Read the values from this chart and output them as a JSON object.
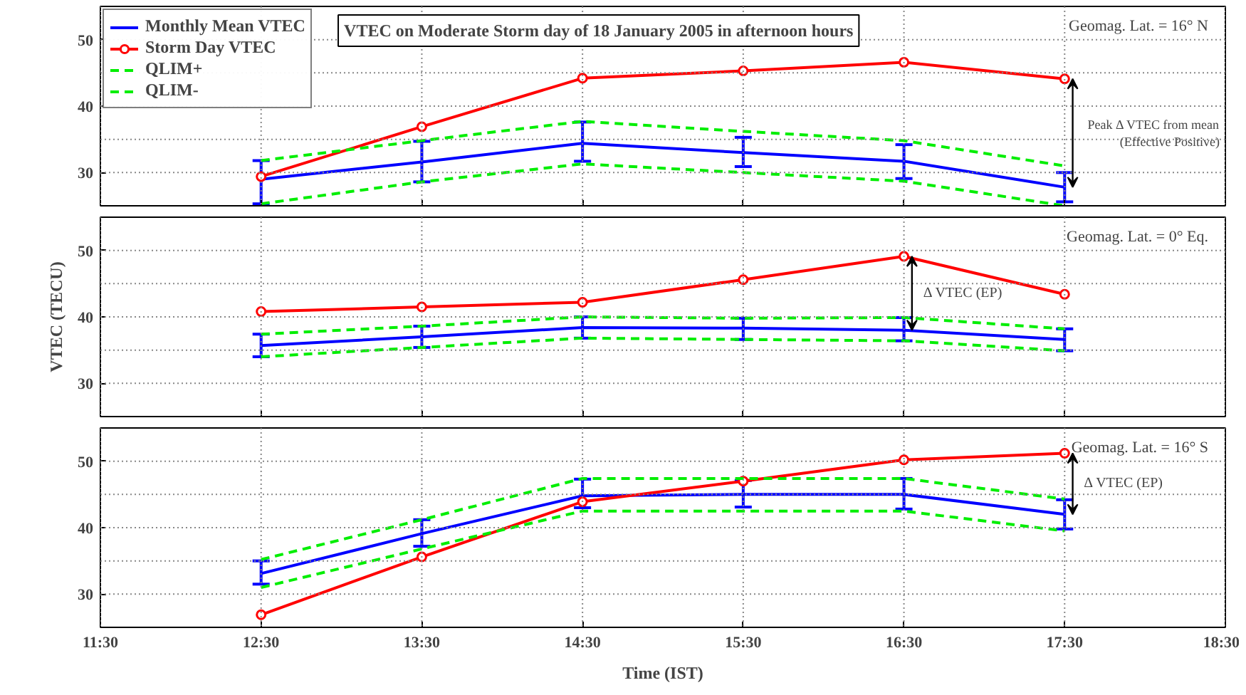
{
  "chart_data": [
    {
      "type": "line",
      "title": "VTEC on Moderate Storm day of 18 January 2005 in afternoon hours",
      "x": [
        12.5,
        13.5,
        14.5,
        15.5,
        16.5,
        17.5
      ],
      "xlim": [
        11.5,
        18.5
      ],
      "xticks": [
        {
          "value": 11.5,
          "label": null
        },
        {
          "value": 12.5,
          "label": null
        },
        {
          "value": 13.5,
          "label": null
        },
        {
          "value": 14.5,
          "label": null
        },
        {
          "value": 15.5,
          "label": null
        },
        {
          "value": 16.5,
          "label": null
        },
        {
          "value": 17.5,
          "label": null
        },
        {
          "value": 18.5,
          "label": null
        }
      ],
      "ylim": [
        25,
        55
      ],
      "yticks": [
        30,
        40,
        50
      ],
      "grid": true,
      "legend": "top left",
      "tick_labels": "y",
      "series": [
        {
          "name": "Monthly Mean VTEC",
          "color": "#0000ff",
          "values": [
            29.0,
            31.6,
            34.4,
            33.0,
            31.7,
            27.8
          ],
          "errors": [
            [
              25.3,
              31.8
            ],
            [
              28.6,
              34.7
            ],
            [
              31.7,
              37.6
            ],
            [
              30.9,
              35.3
            ],
            [
              29.1,
              34.2
            ],
            [
              25.6,
              30.0
            ]
          ]
        },
        {
          "name": "Storm Day VTEC",
          "color": "#ff0000",
          "marker": "circle",
          "values": [
            29.4,
            36.9,
            44.2,
            45.3,
            46.6,
            44.1
          ]
        },
        {
          "name": "QLIM+",
          "color": "#00ee00",
          "line_style": "dashed",
          "values": [
            31.8,
            34.8,
            37.7,
            36.2,
            34.8,
            31.0
          ]
        },
        {
          "name": "QLIM-",
          "color": "#00ee00",
          "line_style": "dashed",
          "values": [
            25.3,
            28.6,
            31.3,
            30.0,
            28.7,
            25.0
          ]
        }
      ],
      "annotations": [
        "Geomag. Lat. = 16° N",
        "Peak Δ VTEC from mean\n(Effective Positive)"
      ]
    },
    {
      "type": "line",
      "ylabel": "VTEC (TECU)",
      "x": [
        12.5,
        13.5,
        14.5,
        15.5,
        16.5,
        17.5
      ],
      "xlim": [
        11.5,
        18.5
      ],
      "xticks": [
        {
          "value": 11.5,
          "label": null
        },
        {
          "value": 12.5,
          "label": null
        },
        {
          "value": 13.5,
          "label": null
        },
        {
          "value": 14.5,
          "label": null
        },
        {
          "value": 15.5,
          "label": null
        },
        {
          "value": 16.5,
          "label": null
        },
        {
          "value": 17.5,
          "label": null
        },
        {
          "value": 18.5,
          "label": null
        }
      ],
      "ylim": [
        25,
        55
      ],
      "yticks": [
        30,
        40,
        50
      ],
      "grid": true,
      "tick_labels": "y",
      "series": [
        {
          "color": "#0000ff",
          "values": [
            35.7,
            37.0,
            38.4,
            38.3,
            38.0,
            36.6
          ],
          "errors": [
            [
              34.0,
              37.4
            ],
            [
              35.4,
              38.6
            ],
            [
              36.8,
              40.0
            ],
            [
              36.6,
              39.8
            ],
            [
              36.4,
              39.9
            ],
            [
              34.9,
              38.2
            ]
          ]
        },
        {
          "color": "#ff0000",
          "marker": "circle",
          "values": [
            40.8,
            41.5,
            42.2,
            45.6,
            49.1,
            43.4
          ]
        },
        {
          "color": "#00ee00",
          "line_style": "dashed",
          "values": [
            37.4,
            38.6,
            40.0,
            39.8,
            39.9,
            38.2
          ]
        },
        {
          "color": "#00ee00",
          "line_style": "dashed",
          "values": [
            34.0,
            35.4,
            36.8,
            36.6,
            36.4,
            34.9
          ]
        }
      ],
      "annotations": [
        "Geomag. Lat. = 0° Eq.",
        "Δ VTEC (EP)"
      ]
    },
    {
      "type": "line",
      "xlabel": "Time (IST)",
      "x": [
        12.5,
        13.5,
        14.5,
        15.5,
        16.5,
        17.5
      ],
      "xlim": [
        11.5,
        18.5
      ],
      "xticks": [
        {
          "value": 11.5,
          "label": "11:30"
        },
        {
          "value": 12.5,
          "label": "12:30"
        },
        {
          "value": 13.5,
          "label": "13:30"
        },
        {
          "value": 14.5,
          "label": "14:30"
        },
        {
          "value": 15.5,
          "label": "15:30"
        },
        {
          "value": 16.5,
          "label": "16:30"
        },
        {
          "value": 17.5,
          "label": "17:30"
        },
        {
          "value": 18.5,
          "label": "18:30"
        }
      ],
      "ylim": [
        25,
        55
      ],
      "yticks": [
        30,
        40,
        50
      ],
      "grid": true,
      "series": [
        {
          "color": "#0000ff",
          "values": [
            33.1,
            39.1,
            44.8,
            45.0,
            45.0,
            42.0
          ],
          "errors": [
            [
              31.5,
              35.0
            ],
            [
              37.2,
              41.2
            ],
            [
              43.0,
              47.3
            ],
            [
              43.1,
              47.1
            ],
            [
              42.8,
              47.4
            ],
            [
              39.8,
              44.2
            ]
          ]
        },
        {
          "color": "#ff0000",
          "marker": "circle",
          "values": [
            26.9,
            35.6,
            43.9,
            47.0,
            50.2,
            51.2
          ]
        },
        {
          "color": "#00ee00",
          "line_style": "dashed",
          "values": [
            35.2,
            41.2,
            47.4,
            47.4,
            47.4,
            44.3
          ]
        },
        {
          "color": "#00ee00",
          "line_style": "dashed",
          "values": [
            31.0,
            36.8,
            42.5,
            42.5,
            42.5,
            39.5
          ]
        }
      ],
      "annotations": [
        "Geomag. Lat. = 16° S",
        "Δ VTEC (EP)"
      ]
    }
  ]
}
